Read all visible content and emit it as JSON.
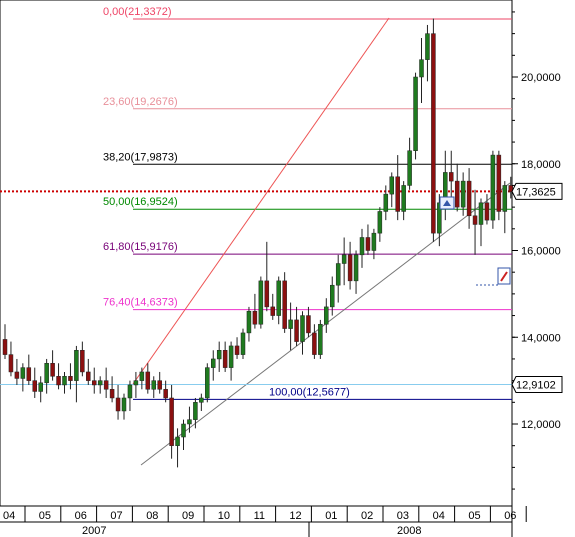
{
  "chart_data": {
    "type": "candlestick",
    "price_axis": {
      "ylim": [
        10.0,
        22.0
      ],
      "ticks": [
        "12,0000",
        "14,0000",
        "16,0000",
        "18,0000",
        "20,0000"
      ],
      "tick_values": [
        12,
        14,
        16,
        18,
        20
      ]
    },
    "current_price": {
      "label": "17,3625",
      "value": 17.3625,
      "color": "#cc0000"
    },
    "marker_price": {
      "label": "12,9102",
      "value": 12.9102,
      "color": "#66bbee"
    },
    "fib_levels": [
      {
        "label": "0,00(21,3372)",
        "value": 21.3372,
        "color": "#ee4466"
      },
      {
        "label": "23,60(19,2676)",
        "value": 19.2676,
        "color": "#e8909a"
      },
      {
        "label": "38,20(17,9873)",
        "value": 17.9873,
        "color": "#000000"
      },
      {
        "label": "50,00(16,9524)",
        "value": 16.9524,
        "color": "#008800"
      },
      {
        "label": "61,80(15,9176)",
        "value": 15.9176,
        "color": "#770077"
      },
      {
        "label": "76,40(14,6373)",
        "value": 14.6373,
        "color": "#ee33cc"
      },
      {
        "label": "100,00(12,5677)",
        "value": 12.5677,
        "color": "#000088"
      }
    ],
    "months": [
      "04",
      "05",
      "06",
      "07",
      "08",
      "09",
      "10",
      "11",
      "12",
      "01",
      "02",
      "03",
      "04",
      "05",
      "06"
    ],
    "years": [
      "2007",
      "2008"
    ],
    "candles": [
      [
        13.95,
        14.3,
        13.5,
        13.6
      ],
      [
        13.6,
        13.9,
        13.1,
        13.2
      ],
      [
        13.2,
        13.5,
        12.9,
        13.05
      ],
      [
        13.05,
        13.4,
        12.75,
        13.3
      ],
      [
        13.3,
        13.6,
        12.9,
        13.0
      ],
      [
        13.0,
        13.3,
        12.6,
        12.75
      ],
      [
        12.75,
        13.1,
        12.5,
        12.95
      ],
      [
        12.95,
        13.5,
        12.7,
        13.4
      ],
      [
        13.4,
        13.7,
        13.0,
        13.1
      ],
      [
        13.1,
        13.4,
        12.8,
        12.9
      ],
      [
        12.9,
        13.2,
        12.7,
        13.1
      ],
      [
        13.1,
        13.4,
        12.8,
        13.0
      ],
      [
        13.0,
        13.8,
        12.5,
        13.7
      ],
      [
        13.7,
        13.9,
        13.1,
        13.2
      ],
      [
        13.2,
        13.5,
        12.9,
        13.0
      ],
      [
        13.0,
        13.3,
        12.7,
        12.9
      ],
      [
        12.9,
        13.1,
        12.7,
        13.0
      ],
      [
        13.0,
        13.3,
        12.6,
        12.8
      ],
      [
        12.8,
        13.1,
        12.5,
        12.6
      ],
      [
        12.6,
        12.9,
        12.1,
        12.3
      ],
      [
        12.3,
        12.7,
        12.1,
        12.6
      ],
      [
        12.6,
        13.0,
        12.3,
        12.9
      ],
      [
        12.9,
        13.2,
        12.6,
        13.0
      ],
      [
        13.0,
        13.3,
        12.8,
        13.2
      ],
      [
        13.2,
        13.4,
        12.7,
        12.8
      ],
      [
        12.8,
        13.1,
        12.6,
        13.0
      ],
      [
        13.0,
        13.2,
        12.7,
        12.8
      ],
      [
        12.8,
        13.0,
        12.5,
        12.6
      ],
      [
        12.6,
        12.9,
        11.2,
        11.5
      ],
      [
        11.5,
        11.9,
        11.0,
        11.7
      ],
      [
        11.7,
        12.1,
        11.4,
        12.0
      ],
      [
        12.0,
        12.4,
        11.8,
        12.1
      ],
      [
        12.1,
        12.6,
        11.9,
        12.5
      ],
      [
        12.5,
        12.7,
        12.3,
        12.6
      ],
      [
        12.6,
        13.4,
        12.5,
        13.3
      ],
      [
        13.3,
        13.7,
        13.0,
        13.5
      ],
      [
        13.5,
        13.9,
        13.2,
        13.7
      ],
      [
        13.7,
        13.9,
        13.2,
        13.3
      ],
      [
        13.3,
        13.9,
        13.0,
        13.8
      ],
      [
        13.8,
        14.0,
        13.5,
        13.6
      ],
      [
        13.6,
        14.2,
        13.5,
        14.1
      ],
      [
        14.1,
        14.7,
        13.9,
        14.6
      ],
      [
        14.6,
        15.0,
        14.2,
        14.3
      ],
      [
        14.3,
        15.4,
        14.2,
        15.3
      ],
      [
        15.3,
        16.2,
        14.6,
        14.7
      ],
      [
        14.7,
        15.0,
        14.4,
        14.5
      ],
      [
        14.5,
        15.4,
        14.3,
        15.3
      ],
      [
        15.3,
        15.5,
        14.1,
        14.2
      ],
      [
        14.2,
        14.8,
        13.7,
        14.4
      ],
      [
        14.4,
        14.7,
        13.8,
        13.9
      ],
      [
        13.9,
        14.6,
        13.6,
        14.5
      ],
      [
        14.5,
        14.7,
        14.0,
        14.1
      ],
      [
        14.1,
        14.3,
        13.5,
        13.6
      ],
      [
        13.6,
        14.4,
        13.5,
        14.3
      ],
      [
        14.3,
        14.9,
        14.1,
        14.7
      ],
      [
        14.7,
        15.4,
        14.5,
        15.2
      ],
      [
        15.2,
        15.9,
        14.8,
        15.7
      ],
      [
        15.7,
        16.3,
        15.2,
        15.9
      ],
      [
        15.9,
        16.2,
        15.1,
        15.3
      ],
      [
        15.3,
        16.0,
        15.0,
        15.9
      ],
      [
        15.9,
        16.5,
        15.6,
        16.3
      ],
      [
        16.3,
        16.6,
        15.9,
        16.0
      ],
      [
        16.0,
        16.5,
        15.8,
        16.4
      ],
      [
        16.4,
        17.0,
        16.2,
        16.9
      ],
      [
        16.9,
        17.5,
        16.7,
        17.3
      ],
      [
        17.3,
        17.8,
        17.0,
        17.7
      ],
      [
        17.7,
        18.2,
        16.7,
        16.9
      ],
      [
        16.9,
        17.6,
        16.7,
        17.5
      ],
      [
        17.5,
        18.6,
        17.4,
        18.3
      ],
      [
        18.3,
        20.1,
        18.1,
        20.0
      ],
      [
        20.0,
        20.9,
        19.4,
        20.4
      ],
      [
        20.4,
        21.2,
        19.9,
        21.0
      ],
      [
        21.0,
        21.35,
        16.2,
        16.4
      ],
      [
        16.4,
        17.3,
        16.1,
        17.1
      ],
      [
        17.1,
        18.3,
        16.7,
        17.8
      ],
      [
        17.8,
        18.3,
        17.2,
        17.6
      ],
      [
        17.6,
        18.0,
        16.9,
        17.0
      ],
      [
        17.0,
        17.8,
        16.8,
        17.6
      ],
      [
        17.6,
        17.9,
        16.5,
        16.8
      ],
      [
        16.8,
        17.4,
        15.9,
        16.6
      ],
      [
        16.6,
        17.2,
        16.1,
        17.1
      ],
      [
        17.1,
        17.3,
        16.6,
        16.7
      ],
      [
        16.7,
        18.3,
        16.5,
        18.2
      ],
      [
        18.2,
        18.3,
        16.7,
        16.9
      ],
      [
        16.9,
        17.6,
        16.4,
        17.5
      ],
      [
        17.5,
        17.7,
        17.2,
        17.35
      ]
    ]
  }
}
